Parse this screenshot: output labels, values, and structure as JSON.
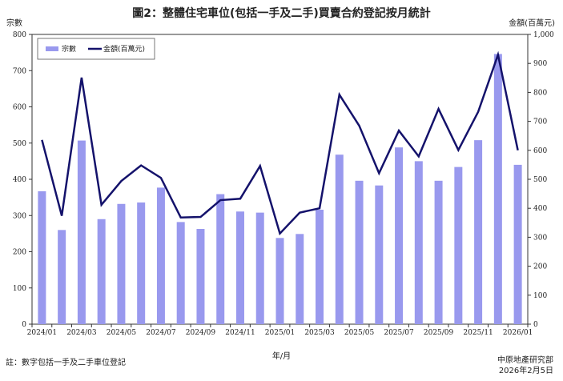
{
  "chart_data": {
    "type": "bar+line",
    "title": "圖2：整體住宅車位(包括一手及二手)買賣合約登記按月統計",
    "xlabel": "年/月",
    "ylabel_left": "宗數",
    "ylabel_right": "金額(百萬元)",
    "ylim_left": [
      0,
      800
    ],
    "ylim_right": [
      0,
      1000
    ],
    "yticks_left": [
      "0",
      "100",
      "200",
      "300",
      "400",
      "500",
      "600",
      "700",
      "800"
    ],
    "yticks_right": [
      "0",
      "100",
      "200",
      "300",
      "400",
      "500",
      "600",
      "700",
      "800",
      "900",
      "1,000"
    ],
    "categories": [
      "2024/01",
      "2024/02",
      "2024/03",
      "2024/04",
      "2024/05",
      "2024/06",
      "2024/07",
      "2024/08",
      "2024/09",
      "2024/10",
      "2024/11",
      "2024/12",
      "2025/01",
      "2025/02",
      "2025/03",
      "2025/04",
      "2025/05",
      "2025/06",
      "2025/07",
      "2025/08",
      "2025/09",
      "2025/10",
      "2025/11",
      "2025/12",
      "2026/01"
    ],
    "xtick_labels": [
      "2024/01",
      "",
      "2024/03",
      "",
      "2024/05",
      "",
      "2024/07",
      "",
      "2024/09",
      "",
      "2024/11",
      "",
      "2025/01",
      "",
      "2025/03",
      "",
      "2025/05",
      "",
      "2025/07",
      "",
      "2025/09",
      "",
      "2025/11",
      "",
      "2026/01"
    ],
    "series": [
      {
        "name": "宗數",
        "type": "bar",
        "axis": "left",
        "color": "#9999ee",
        "values": [
          367,
          260,
          507,
          290,
          332,
          336,
          377,
          282,
          263,
          359,
          311,
          308,
          238,
          249,
          316,
          468,
          396,
          383,
          488,
          450,
          396,
          434,
          508,
          746,
          440
        ]
      },
      {
        "name": "金額(百萬元)",
        "type": "line",
        "axis": "right",
        "color": "#14126b",
        "values": [
          636,
          374,
          851,
          412,
          494,
          548,
          505,
          368,
          370,
          428,
          433,
          546,
          313,
          385,
          400,
          792,
          685,
          521,
          668,
          579,
          743,
          601,
          733,
          930,
          600
        ]
      }
    ],
    "legend": "top-left",
    "grid": false
  },
  "note": "註：數字包括一手及二手車位登記",
  "source_name": "中原地產研究部",
  "source_date": "2026年2月5日"
}
